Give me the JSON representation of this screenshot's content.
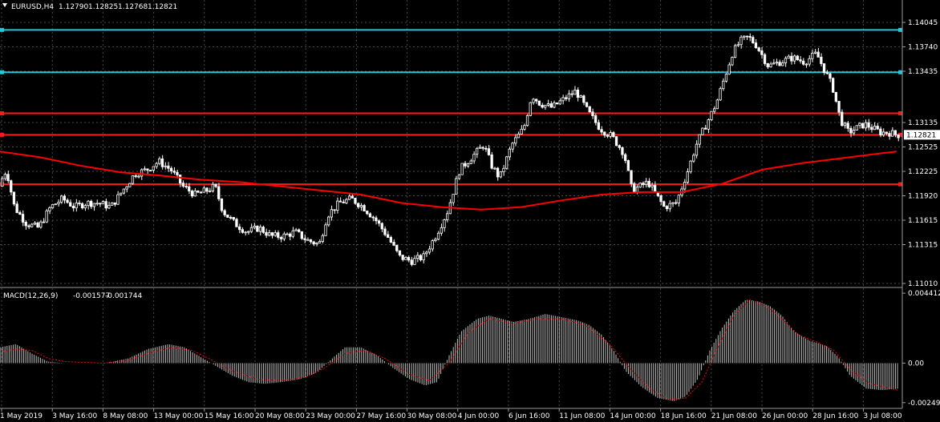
{
  "header": {
    "symbol": "EURUSD,H4",
    "open": "1.12790",
    "high": "1.12825",
    "low": "1.12768",
    "close": "1.12821"
  },
  "colors": {
    "background": "#000000",
    "grid": "#4a4a4a",
    "bull_candle": "#000000",
    "bear_candle": "#ffffff",
    "candle_outline": "#ffffff",
    "moving_average": "#ff0000",
    "support_resistance_blue": "#27c6d6",
    "support_resistance_red": "#ff1a1a",
    "macd_histogram": "#c0c0c0",
    "macd_signal": "#ff0000",
    "price_tag_bg": "#ffffff",
    "price_tag_text": "#000000"
  },
  "chart_data": [
    {
      "type": "candlestick",
      "name": "EURUSD,H4",
      "ylim": [
        1.1101,
        1.1432
      ],
      "y_ticks": [
        "1.14045",
        "1.13740",
        "1.13435",
        "1.13135",
        "1.12525",
        "1.12225",
        "1.11920",
        "1.11615",
        "1.11315",
        "1.11010"
      ],
      "current_price": "1.12821",
      "horizontal_lines": [
        {
          "price": 1.14085,
          "color": "blue"
        },
        {
          "price": 1.13575,
          "color": "blue"
        },
        {
          "price": 1.1308,
          "color": "red"
        },
        {
          "price": 1.12821,
          "color": "red"
        },
        {
          "price": 1.12225,
          "color": "red"
        }
      ],
      "x_ticks": [
        "1 May 2019",
        "3 May 16:00",
        "8 May 08:00",
        "13 May 00:00",
        "15 May 16:00",
        "20 May 08:00",
        "23 May 00:00",
        "27 May 16:00",
        "30 May 08:00",
        "4 Jun 00:00",
        "6 Jun 16:00",
        "11 Jun 08:00",
        "14 Jun 00:00",
        "18 Jun 16:00",
        "21 Jun 08:00",
        "26 Jun 00:00",
        "28 Jun 16:00",
        "3 Jul 08:00"
      ],
      "close_path": [
        [
          0,
          1.122
        ],
        [
          10,
          1.124
        ],
        [
          20,
          1.1195
        ],
        [
          35,
          1.1175
        ],
        [
          50,
          1.117
        ],
        [
          65,
          1.1195
        ],
        [
          80,
          1.1205
        ],
        [
          95,
          1.1195
        ],
        [
          110,
          1.12
        ],
        [
          125,
          1.12
        ],
        [
          140,
          1.1195
        ],
        [
          155,
          1.1215
        ],
        [
          170,
          1.1235
        ],
        [
          185,
          1.124
        ],
        [
          200,
          1.125
        ],
        [
          215,
          1.124
        ],
        [
          230,
          1.122
        ],
        [
          245,
          1.121
        ],
        [
          260,
          1.1215
        ],
        [
          270,
          1.122
        ],
        [
          280,
          1.119
        ],
        [
          295,
          1.1175
        ],
        [
          310,
          1.1165
        ],
        [
          325,
          1.117
        ],
        [
          340,
          1.116
        ],
        [
          355,
          1.116
        ],
        [
          370,
          1.1165
        ],
        [
          385,
          1.1155
        ],
        [
          400,
          1.115
        ],
        [
          410,
          1.1185
        ],
        [
          425,
          1.12
        ],
        [
          440,
          1.1205
        ],
        [
          455,
          1.1195
        ],
        [
          470,
          1.118
        ],
        [
          485,
          1.116
        ],
        [
          500,
          1.1135
        ],
        [
          515,
          1.113
        ],
        [
          530,
          1.1135
        ],
        [
          545,
          1.116
        ],
        [
          560,
          1.119
        ],
        [
          575,
          1.124
        ],
        [
          590,
          1.1255
        ],
        [
          605,
          1.127
        ],
        [
          615,
          1.1245
        ],
        [
          625,
          1.123
        ],
        [
          640,
          1.127
        ],
        [
          655,
          1.129
        ],
        [
          665,
          1.133
        ],
        [
          675,
          1.132
        ],
        [
          690,
          1.1315
        ],
        [
          705,
          1.1325
        ],
        [
          720,
          1.1335
        ],
        [
          735,
          1.131
        ],
        [
          750,
          1.129
        ],
        [
          765,
          1.128
        ],
        [
          780,
          1.126
        ],
        [
          790,
          1.1215
        ],
        [
          800,
          1.122
        ],
        [
          810,
          1.1225
        ],
        [
          820,
          1.121
        ],
        [
          830,
          1.1195
        ],
        [
          845,
          1.12
        ],
        [
          860,
          1.124
        ],
        [
          870,
          1.127
        ],
        [
          880,
          1.129
        ],
        [
          895,
          1.132
        ],
        [
          905,
          1.135
        ],
        [
          915,
          1.138
        ],
        [
          925,
          1.1395
        ],
        [
          935,
          1.14
        ],
        [
          945,
          1.139
        ],
        [
          960,
          1.1365
        ],
        [
          975,
          1.137
        ],
        [
          990,
          1.1375
        ],
        [
          1005,
          1.137
        ],
        [
          1020,
          1.138
        ],
        [
          1030,
          1.136
        ],
        [
          1040,
          1.134
        ],
        [
          1050,
          1.13
        ],
        [
          1060,
          1.1285
        ],
        [
          1070,
          1.129
        ],
        [
          1080,
          1.1295
        ],
        [
          1090,
          1.129
        ],
        [
          1100,
          1.1285
        ],
        [
          1110,
          1.1285
        ],
        [
          1120,
          1.1282
        ]
      ],
      "moving_average": [
        [
          0,
          1.1262
        ],
        [
          50,
          1.1255
        ],
        [
          100,
          1.1245
        ],
        [
          150,
          1.1237
        ],
        [
          200,
          1.1233
        ],
        [
          250,
          1.1228
        ],
        [
          300,
          1.1225
        ],
        [
          350,
          1.122
        ],
        [
          400,
          1.1215
        ],
        [
          450,
          1.121
        ],
        [
          500,
          1.12
        ],
        [
          550,
          1.1195
        ],
        [
          600,
          1.1192
        ],
        [
          650,
          1.1195
        ],
        [
          700,
          1.1203
        ],
        [
          750,
          1.121
        ],
        [
          800,
          1.1213
        ],
        [
          850,
          1.1213
        ],
        [
          900,
          1.1223
        ],
        [
          950,
          1.124
        ],
        [
          1000,
          1.1248
        ],
        [
          1050,
          1.1254
        ],
        [
          1100,
          1.126
        ],
        [
          1118,
          1.1262
        ]
      ]
    },
    {
      "type": "bar",
      "name": "MACD(12,26,9)",
      "macd_value": "-0.001577",
      "signal_value": "-0.001744",
      "ylim": [
        -0.00275,
        0.00462
      ],
      "y_ticks": [
        "0.004412",
        "0.00",
        "-0.00249"
      ],
      "histogram_path": [
        [
          0,
          0.001
        ],
        [
          20,
          0.0012
        ],
        [
          40,
          0.0006
        ],
        [
          60,
          0.0001
        ],
        [
          80,
          0.0
        ],
        [
          100,
          0.0
        ],
        [
          130,
          0.0
        ],
        [
          160,
          0.0003
        ],
        [
          185,
          0.0009
        ],
        [
          210,
          0.0012
        ],
        [
          230,
          0.001
        ],
        [
          250,
          0.0004
        ],
        [
          270,
          -0.0002
        ],
        [
          290,
          -0.0008
        ],
        [
          310,
          -0.0012
        ],
        [
          330,
          -0.0013
        ],
        [
          350,
          -0.0012
        ],
        [
          375,
          -0.001
        ],
        [
          395,
          -0.0006
        ],
        [
          410,
          0.0001
        ],
        [
          430,
          0.001
        ],
        [
          450,
          0.001
        ],
        [
          470,
          0.0005
        ],
        [
          490,
          -0.0003
        ],
        [
          510,
          -0.001
        ],
        [
          530,
          -0.0014
        ],
        [
          545,
          -0.0012
        ],
        [
          560,
          0.0005
        ],
        [
          575,
          0.002
        ],
        [
          595,
          0.0028
        ],
        [
          610,
          0.003
        ],
        [
          625,
          0.0028
        ],
        [
          640,
          0.0026
        ],
        [
          660,
          0.0028
        ],
        [
          680,
          0.0031
        ],
        [
          700,
          0.0029
        ],
        [
          720,
          0.0027
        ],
        [
          735,
          0.0024
        ],
        [
          750,
          0.0018
        ],
        [
          765,
          0.0008
        ],
        [
          780,
          -0.0005
        ],
        [
          800,
          -0.0015
        ],
        [
          820,
          -0.0022
        ],
        [
          840,
          -0.0024
        ],
        [
          855,
          -0.0021
        ],
        [
          870,
          -0.001
        ],
        [
          885,
          0.0008
        ],
        [
          900,
          0.0022
        ],
        [
          915,
          0.0033
        ],
        [
          930,
          0.004
        ],
        [
          945,
          0.0039
        ],
        [
          960,
          0.0036
        ],
        [
          975,
          0.003
        ],
        [
          990,
          0.002
        ],
        [
          1010,
          0.0014
        ],
        [
          1030,
          0.0011
        ],
        [
          1045,
          0.0004
        ],
        [
          1060,
          -0.0008
        ],
        [
          1080,
          -0.0016
        ],
        [
          1100,
          -0.0017
        ],
        [
          1120,
          -0.0016
        ]
      ],
      "signal_path": [
        [
          0,
          0.0007
        ],
        [
          20,
          0.0009
        ],
        [
          40,
          0.0008
        ],
        [
          60,
          0.0003
        ],
        [
          80,
          0.0001
        ],
        [
          130,
          0.0
        ],
        [
          160,
          0.0002
        ],
        [
          190,
          0.0007
        ],
        [
          215,
          0.001
        ],
        [
          240,
          0.0008
        ],
        [
          260,
          0.0003
        ],
        [
          290,
          -0.0005
        ],
        [
          320,
          -0.001
        ],
        [
          350,
          -0.0011
        ],
        [
          380,
          -0.0009
        ],
        [
          405,
          -0.0003
        ],
        [
          430,
          0.0006
        ],
        [
          455,
          0.0008
        ],
        [
          480,
          0.0003
        ],
        [
          510,
          -0.0007
        ],
        [
          535,
          -0.0011
        ],
        [
          560,
          0.0
        ],
        [
          585,
          0.002
        ],
        [
          610,
          0.0028
        ],
        [
          640,
          0.0025
        ],
        [
          670,
          0.0028
        ],
        [
          700,
          0.0028
        ],
        [
          730,
          0.0024
        ],
        [
          760,
          0.0012
        ],
        [
          785,
          -0.0003
        ],
        [
          810,
          -0.0016
        ],
        [
          835,
          -0.0023
        ],
        [
          855,
          -0.0022
        ],
        [
          875,
          -0.0012
        ],
        [
          895,
          0.001
        ],
        [
          915,
          0.003
        ],
        [
          935,
          0.004
        ],
        [
          955,
          0.0036
        ],
        [
          975,
          0.0028
        ],
        [
          995,
          0.0018
        ],
        [
          1020,
          0.0013
        ],
        [
          1040,
          0.0008
        ],
        [
          1060,
          -0.0004
        ],
        [
          1085,
          -0.0013
        ],
        [
          1120,
          -0.0017
        ]
      ]
    }
  ]
}
